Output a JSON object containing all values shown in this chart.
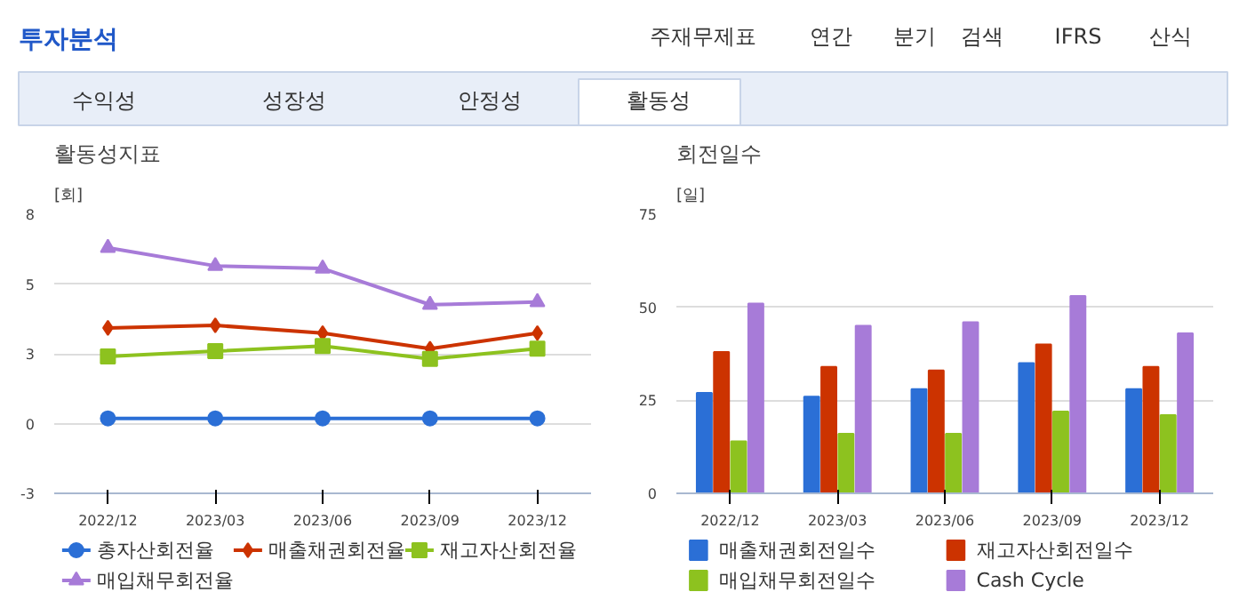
{
  "chart_data": [
    {
      "type": "other",
      "title": "투자분석",
      "annotations": [
        "주재무제표",
        "연간",
        "분기",
        "검색",
        "IFRS",
        "산식",
        "수익성",
        "성장성",
        "안정성",
        "활동성"
      ]
    },
    {
      "type": "line",
      "title": "활동성지표",
      "ylabel": "[회]",
      "categories": [
        "2022/12",
        "2023/03",
        "2023/06",
        "2023/09",
        "2023/12"
      ],
      "ylim": [
        -2.7,
        8.1
      ],
      "yticks": [
        {
          "value": -2.7,
          "label": "-3"
        },
        0,
        {
          "value": 2.7,
          "label": "3"
        },
        {
          "value": 5.4,
          "label": "5"
        },
        {
          "value": 8.1,
          "label": "8"
        }
      ],
      "grid": "y",
      "legend": "bottom",
      "series": [
        {
          "name": "총자산회전율",
          "color": "#2b6fd6",
          "marker": "circle",
          "values": [
            0.2,
            0.2,
            0.2,
            0.2,
            0.2
          ]
        },
        {
          "name": "매출채권회전율",
          "color": "#cc3300",
          "marker": "diamond",
          "values": [
            3.7,
            3.8,
            3.5,
            2.9,
            3.5
          ]
        },
        {
          "name": "재고자산회전율",
          "color": "#8dc21f",
          "marker": "square",
          "values": [
            2.6,
            2.8,
            3.0,
            2.5,
            2.9
          ]
        },
        {
          "name": "매입채무회전율",
          "color": "#a77bd8",
          "marker": "triangle",
          "values": [
            6.8,
            6.1,
            6.0,
            4.6,
            4.7
          ]
        }
      ]
    },
    {
      "type": "bar",
      "title": "회전일수",
      "ylabel": "[일]",
      "categories": [
        "2022/12",
        "2023/03",
        "2023/06",
        "2023/09",
        "2023/12"
      ],
      "ylim": [
        0,
        75
      ],
      "yticks": [
        0,
        25,
        50,
        75
      ],
      "grid": "y",
      "legend": "bottom",
      "series": [
        {
          "name": "매출채권회전일수",
          "color": "#2b6fd6",
          "values": [
            27,
            26,
            28,
            35,
            28
          ]
        },
        {
          "name": "재고자산회전일수",
          "color": "#cc3300",
          "values": [
            38,
            34,
            33,
            40,
            34
          ]
        },
        {
          "name": "매입채무회전일수",
          "color": "#8dc21f",
          "values": [
            14,
            16,
            16,
            22,
            21
          ]
        },
        {
          "name": "Cash Cycle",
          "color": "#a77bd8",
          "values": [
            51,
            45,
            46,
            53,
            43
          ]
        }
      ]
    }
  ]
}
